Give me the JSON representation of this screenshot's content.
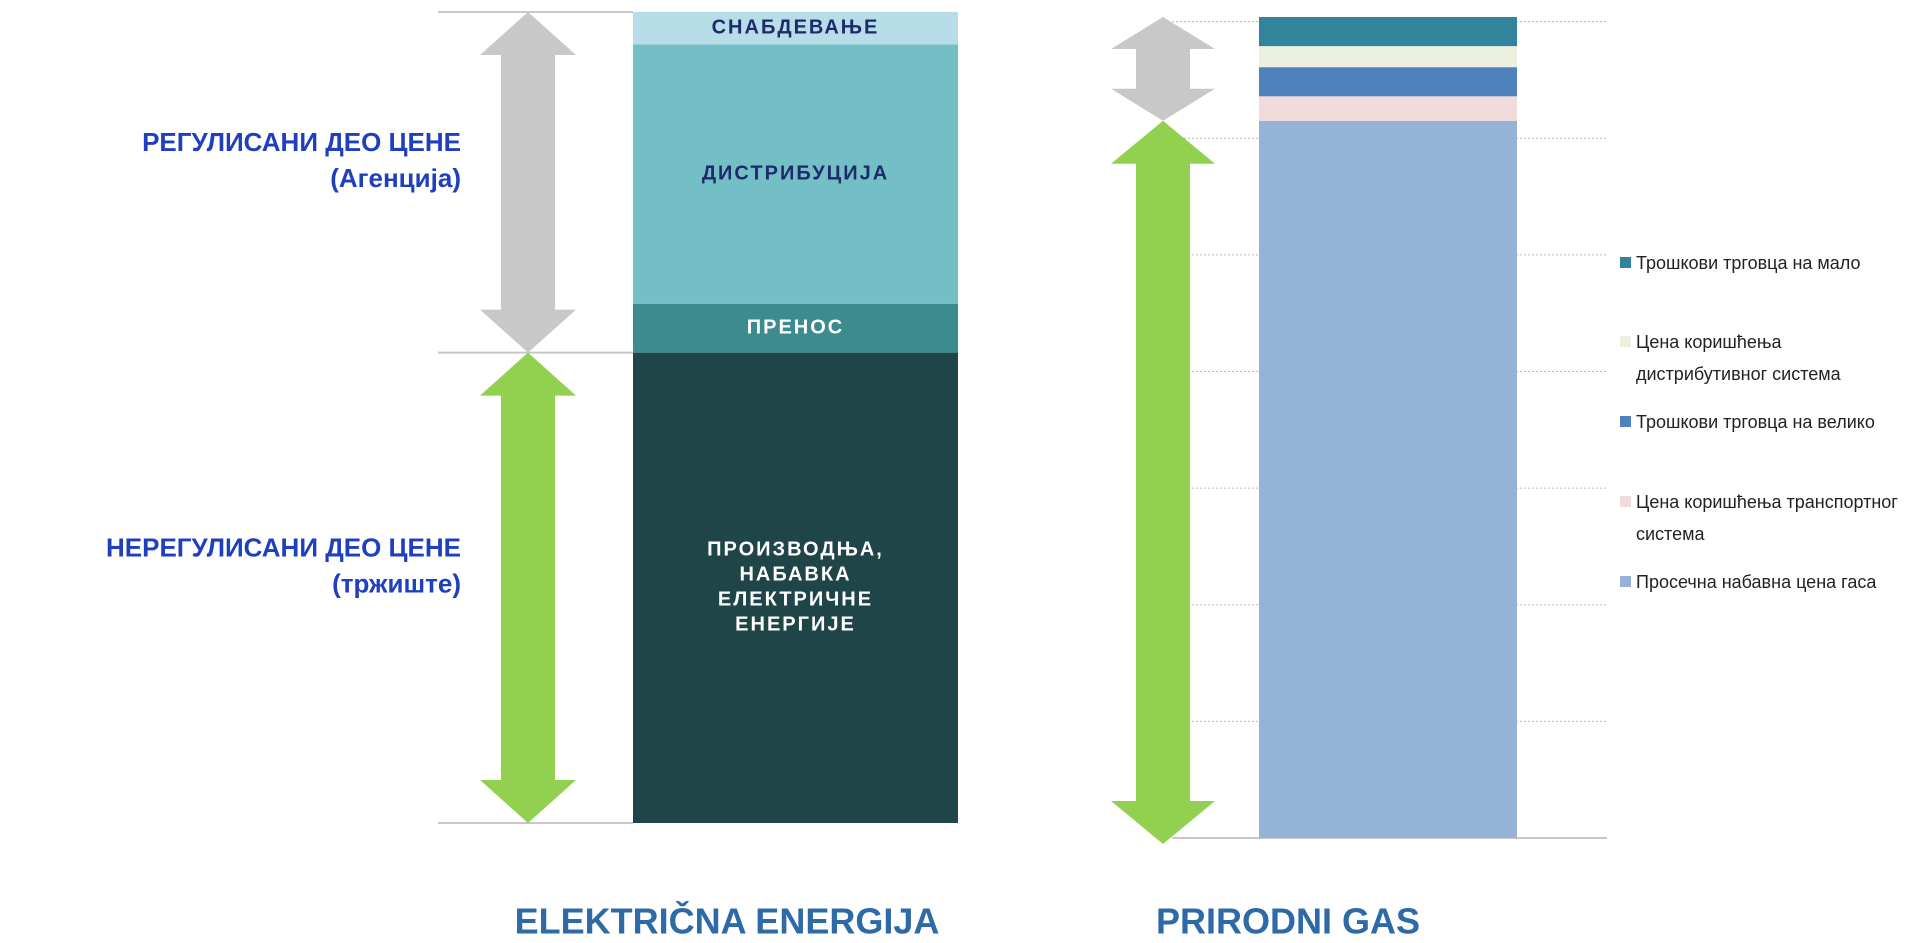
{
  "chart_data": [
    {
      "type": "stacked_bar",
      "title": "ELEKTRIČNA ENERGIJA",
      "ylim": [
        0,
        100
      ],
      "series": [
        {
          "name": [
            "ПРОИЗВОДЊА,",
            "НАБАВКА",
            "ЕЛЕКТРИЧНЕ",
            "ЕНЕРГИЈЕ"
          ],
          "color": "#1f4548",
          "text_color": "#ffffff",
          "values": [
            58
          ]
        },
        {
          "name": [
            "ПРЕНОС"
          ],
          "color": "#3b8b8f",
          "text_color": "#ffffff",
          "values": [
            6
          ]
        },
        {
          "name": [
            "ДИСТРИБУЦИЈА"
          ],
          "color": "#74bfc6",
          "text_color": "#1f2a6b",
          "values": [
            32
          ]
        },
        {
          "name": [
            "СНАБДЕВАЊЕ"
          ],
          "color": "#b7dee8",
          "text_color": "#1f2a6b",
          "values": [
            4
          ]
        }
      ],
      "annotations": [
        {
          "text": "НЕРЕГУЛИСАНИ ДЕО ЦЕНЕ",
          "subtext": "(тржиште)"
        },
        {
          "text": "РЕГУЛИСАНИ ДЕО ЦЕНЕ",
          "subtext": "(Агенција)"
        }
      ]
    },
    {
      "type": "stacked_bar",
      "title": "PRIRODNI GAS",
      "ylim": [
        0,
        7.1
      ],
      "yticks": [
        0,
        1,
        2,
        3,
        4,
        5,
        6,
        7
      ],
      "grid": true,
      "legend": "right",
      "series": [
        {
          "name": "Просечна набавна цена гаса",
          "color": "#95b3d7",
          "values": [
            6.15
          ]
        },
        {
          "name": "Цена коришћења транспортног система",
          "color": "#f2dcdb",
          "values": [
            0.21
          ]
        },
        {
          "name": "Трошкови трговца на велико",
          "color": "#4f81bd",
          "values": [
            0.25
          ]
        },
        {
          "name": "Цена коришћења дистрибутивног система",
          "color": "#ebf1de",
          "values": [
            0.18
          ]
        },
        {
          "name": "Трошкови трговца на мало",
          "color": "#31849b",
          "values": [
            0.25
          ]
        }
      ]
    }
  ]
}
